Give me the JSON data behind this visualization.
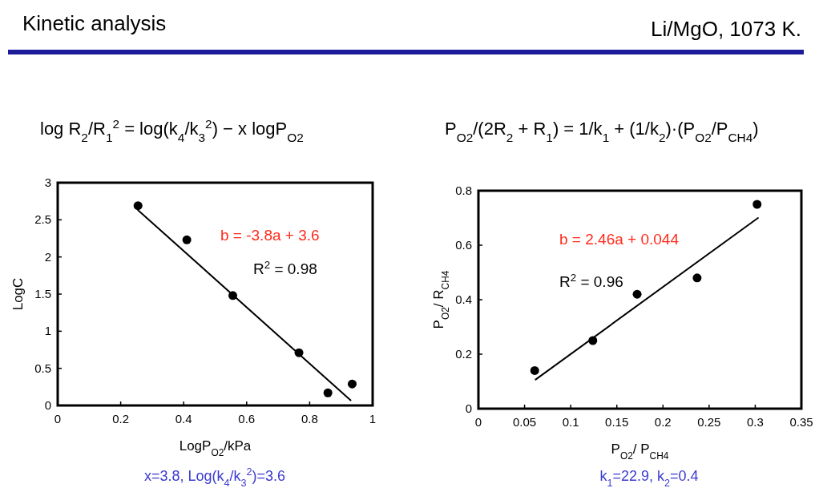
{
  "chart_data": [
    {
      "type": "scatter",
      "title": "Kinetic analysis",
      "xlabel": "LogP$_{O2}$/kPa",
      "ylabel": "LogC",
      "xlim": [
        0,
        1
      ],
      "ylim": [
        0,
        3
      ],
      "xticks": [
        0,
        0.2,
        0.4,
        0.6,
        0.8,
        1
      ],
      "yticks": [
        0,
        0.5,
        1,
        1.5,
        2,
        2.5,
        3
      ],
      "annotations": [
        "log R$_{2}$/R$_{1}$$^{2}$ = log(k$_{4}$/k$_{3}$$^{2}$) − x logP$_{O2}$",
        "b = -3.8a + 3.6",
        "R$^{2}$ = 0.98",
        "x=3.8, Log(k$_{4}$/k$_{3}$$^{2}$)=3.6"
      ],
      "series": [
        {
          "marker": "circle",
          "color": "#000000",
          "x": [
            0.255,
            0.41,
            0.556,
            0.766,
            0.858,
            0.935
          ],
          "values": [
            2.69,
            2.23,
            1.48,
            0.71,
            0.17,
            0.29
          ]
        },
        {
          "type": "line",
          "marker": "none",
          "color": "#000000",
          "x": [
            0.255,
            0.93
          ],
          "values": [
            2.63,
            0.07
          ]
        }
      ]
    },
    {
      "type": "scatter",
      "title": "Li/MgO, 1073 K.",
      "xlabel": "P$_{O2}$/ P$_{CH4}$",
      "ylabel": "P$_{O2}$/ R$_{CH4}$",
      "xlim": [
        0,
        0.35
      ],
      "ylim": [
        0,
        0.8
      ],
      "xticks": [
        0,
        0.05,
        0.1,
        0.15,
        0.2,
        0.25,
        0.3,
        0.35
      ],
      "yticks": [
        0,
        0.2,
        0.4,
        0.6,
        0.8
      ],
      "annotations": [
        "P$_{O2}$/(2R$_{2}$ + R$_{1}$) = 1/k$_{1}$ + (1/k$_{2}$)·(P$_{O2}$/P$_{CH4}$)",
        "b = 2.46a + 0.044",
        "R$^{2}$ = 0.96",
        "k$_{1}$=22.9, k$_{2}$=0.4"
      ],
      "series": [
        {
          "marker": "circle",
          "color": "#000000",
          "x": [
            0.061,
            0.124,
            0.172,
            0.237,
            0.302
          ],
          "values": [
            0.14,
            0.25,
            0.42,
            0.48,
            0.75
          ]
        },
        {
          "type": "line",
          "marker": "none",
          "color": "#000000",
          "x": [
            0.062,
            0.303
          ],
          "values": [
            0.107,
            0.7
          ]
        }
      ]
    }
  ]
}
